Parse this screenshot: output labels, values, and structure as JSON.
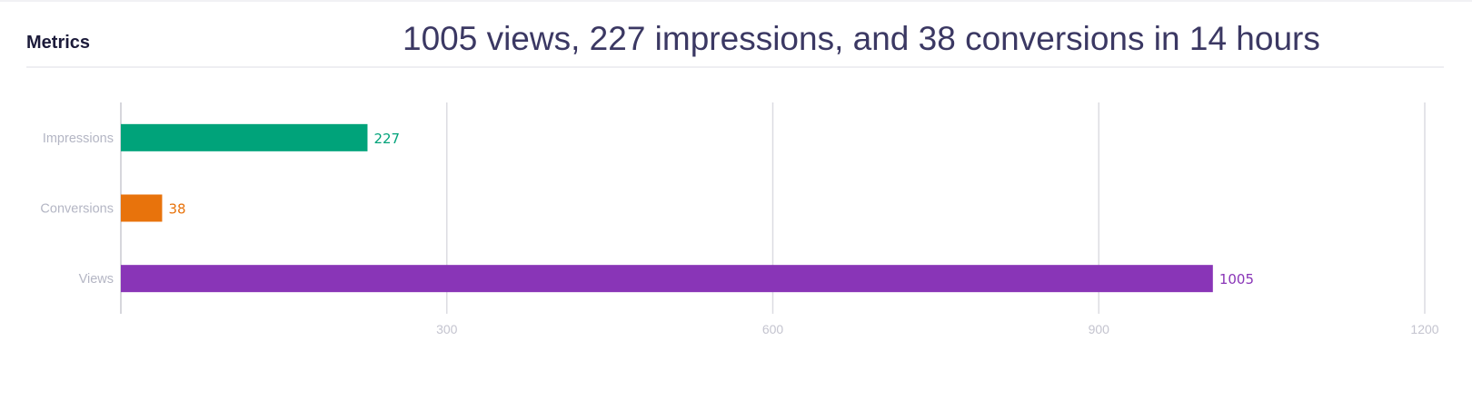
{
  "panel": {
    "title": "Metrics",
    "summary": "1005 views, 227 impressions, and 38 conversions in 14 hours"
  },
  "chart_data": {
    "type": "bar",
    "orientation": "horizontal",
    "categories": [
      "Impressions",
      "Conversions",
      "Views"
    ],
    "values": [
      227,
      38,
      1005
    ],
    "colors": [
      "#00a37a",
      "#e8730c",
      "#8935b7"
    ],
    "x_ticks": [
      "300",
      "600",
      "900",
      "1200"
    ],
    "xlim": [
      0,
      1200
    ],
    "grid": true,
    "data_labels": true
  }
}
